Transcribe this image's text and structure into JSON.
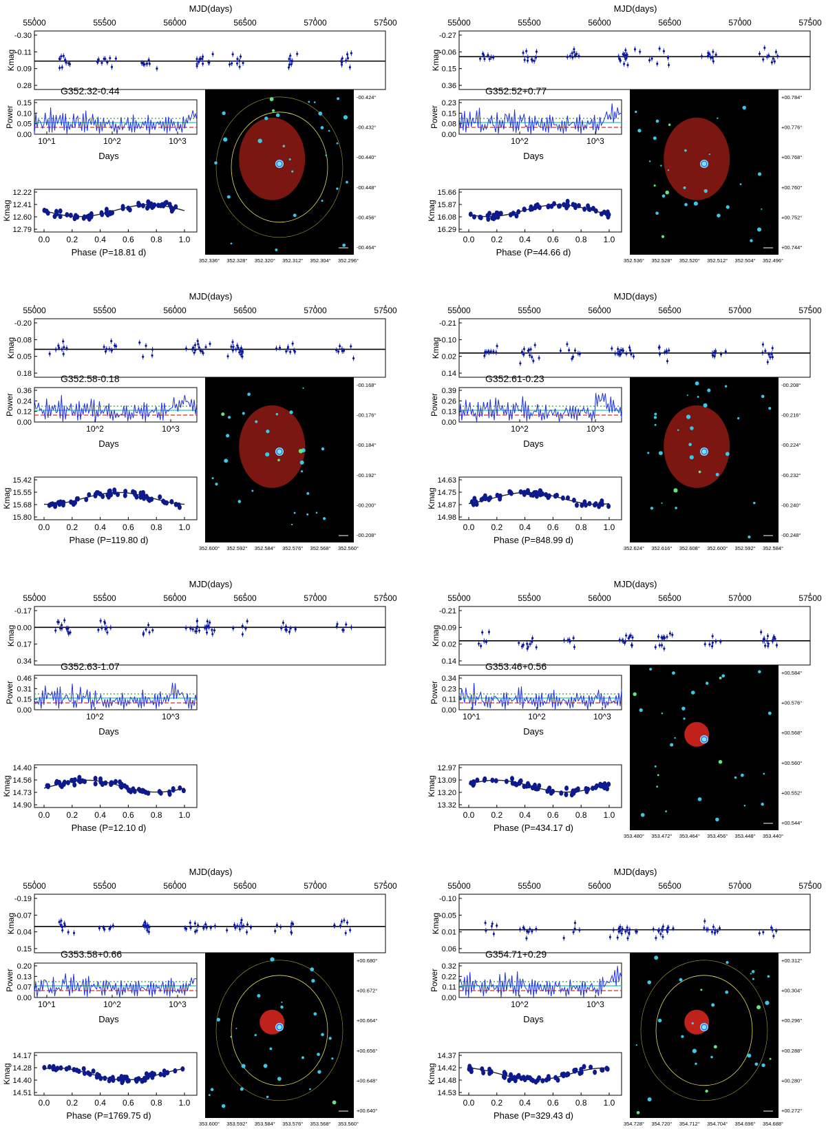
{
  "colors": {
    "points": "#0d1a8c",
    "errorbars": "#1e2fd6",
    "periodogram": "#1f32e0",
    "level_green": "#2a9d2a",
    "level_cyan": "#19c3c3",
    "level_red": "#e0281e",
    "fit": "#222222",
    "image_bg": "#000000",
    "nebula": "#e0281e",
    "contour": "#e8e060"
  },
  "chart_data": [
    {
      "type": "scatter",
      "name": "G352.32-0.44",
      "mjd_xlabel": "MJD(days)",
      "mjd_ticks": [
        "55000",
        "55500",
        "56000",
        "56500",
        "57000",
        "57500"
      ],
      "kmag_ylabel": "Kmag",
      "kmag_ticks": [
        "-0.30",
        "-0.11",
        "0.09",
        "0.28"
      ],
      "kmag_range": [
        -0.3,
        0.28
      ],
      "power_ylabel": "Power",
      "power_ticks": [
        "0.15",
        "0.10",
        "0.05",
        "0.00"
      ],
      "power_range": [
        0,
        0.15
      ],
      "days_xlabel": "Days",
      "days_ticks": [
        "10^1",
        "10^2",
        "10^3"
      ],
      "phase_ylabel": "Kmag",
      "phase_ticks": [
        "12.22",
        "12.41",
        "12.60",
        "12.79"
      ],
      "phase_range": [
        12.22,
        12.79
      ],
      "phase_xticks": [
        "0.0",
        "0.2",
        "0.4",
        "0.6",
        "0.8",
        "1.0"
      ],
      "phase_xlabel": "Phase (P=18.81 d)",
      "has_image": true,
      "image_lon_ticks": [
        "352.336°",
        "352.328°",
        "352.320°",
        "352.312°",
        "352.304°",
        "352.296°"
      ],
      "image_lat_ticks": [
        "-00.424°",
        "-00.432°",
        "-00.440°",
        "-00.448°",
        "-00.456°",
        "-00.464°"
      ]
    },
    {
      "type": "scatter",
      "name": "G352.52+0.77",
      "mjd_xlabel": "MJD(days)",
      "mjd_ticks": [
        "55000",
        "55500",
        "56000",
        "56500",
        "57000",
        "57500"
      ],
      "kmag_ylabel": "Kmag",
      "kmag_ticks": [
        "-0.27",
        "-0.06",
        "0.15",
        "0.36"
      ],
      "kmag_range": [
        -0.27,
        0.36
      ],
      "power_ylabel": "Power",
      "power_ticks": [
        "0.23",
        "0.15",
        "0.08",
        "0.00"
      ],
      "power_range": [
        0,
        0.23
      ],
      "days_xlabel": "Days",
      "days_ticks": [
        "10^2",
        "10^3"
      ],
      "phase_ylabel": "Kmag",
      "phase_ticks": [
        "15.66",
        "15.87",
        "16.08",
        "16.29"
      ],
      "phase_range": [
        15.66,
        16.29
      ],
      "phase_xticks": [
        "0.0",
        "0.2",
        "0.4",
        "0.6",
        "0.8",
        "1.0"
      ],
      "phase_xlabel": "Phase (P=44.66 d)",
      "has_image": true,
      "image_lon_ticks": [
        "352.536°",
        "352.528°",
        "352.520°",
        "352.512°",
        "352.504°",
        "352.496°"
      ],
      "image_lat_ticks": [
        "+00.784°",
        "+00.776°",
        "+00.768°",
        "+00.760°",
        "+00.752°",
        "+00.744°"
      ]
    },
    {
      "type": "scatter",
      "name": "G352.58-0.18",
      "mjd_xlabel": "MJD(days)",
      "mjd_ticks": [
        "55000",
        "55500",
        "56000",
        "56500",
        "57000",
        "57500"
      ],
      "kmag_ylabel": "Kmag",
      "kmag_ticks": [
        "-0.20",
        "-0.08",
        "0.05",
        "0.18"
      ],
      "kmag_range": [
        -0.2,
        0.18
      ],
      "power_ylabel": "Power",
      "power_ticks": [
        "0.36",
        "0.24",
        "0.12",
        "0.00"
      ],
      "power_range": [
        0,
        0.36
      ],
      "days_xlabel": "Days",
      "days_ticks": [
        "10^2",
        "10^3"
      ],
      "phase_ylabel": "Kmag",
      "phase_ticks": [
        "15.42",
        "15.55",
        "15.68",
        "15.80"
      ],
      "phase_range": [
        15.42,
        15.8
      ],
      "phase_xticks": [
        "0.0",
        "0.2",
        "0.4",
        "0.6",
        "0.8",
        "1.0"
      ],
      "phase_xlabel": "Phase (P=119.80 d)",
      "has_image": true,
      "image_lon_ticks": [
        "352.600°",
        "352.592°",
        "352.584°",
        "352.576°",
        "352.568°",
        "352.560°"
      ],
      "image_lat_ticks": [
        "-00.168°",
        "-00.176°",
        "-00.184°",
        "-00.192°",
        "-00.200°",
        "-00.208°"
      ]
    },
    {
      "type": "scatter",
      "name": "G352.61-0.23",
      "mjd_xlabel": "MJD(days)",
      "mjd_ticks": [
        "55000",
        "55500",
        "56000",
        "56500",
        "57000",
        "57500"
      ],
      "kmag_ylabel": "Kmag",
      "kmag_ticks": [
        "-0.21",
        "-0.10",
        "0.02",
        "0.14"
      ],
      "kmag_range": [
        -0.21,
        0.14
      ],
      "power_ylabel": "Power",
      "power_ticks": [
        "0.39",
        "0.26",
        "0.13",
        "0.00"
      ],
      "power_range": [
        0,
        0.39
      ],
      "days_xlabel": "Days",
      "days_ticks": [
        "10^2",
        "10^3"
      ],
      "phase_ylabel": "Kmag",
      "phase_ticks": [
        "14.63",
        "14.75",
        "14.87",
        "14.98"
      ],
      "phase_range": [
        14.63,
        14.98
      ],
      "phase_xticks": [
        "0.0",
        "0.2",
        "0.4",
        "0.6",
        "0.8",
        "1.0"
      ],
      "phase_xlabel": "Phase (P=848.99 d)",
      "has_image": true,
      "image_lon_ticks": [
        "352.624°",
        "352.616°",
        "352.608°",
        "352.600°",
        "352.592°",
        "352.584°"
      ],
      "image_lat_ticks": [
        "-00.208°",
        "-00.216°",
        "-00.224°",
        "-00.232°",
        "-00.240°",
        "-00.248°"
      ]
    },
    {
      "type": "scatter",
      "name": "G352.63-1.07",
      "mjd_xlabel": "MJD(days)",
      "mjd_ticks": [
        "55000",
        "55500",
        "56000",
        "56500",
        "57000",
        "57500"
      ],
      "kmag_ylabel": "Kmag",
      "kmag_ticks": [
        "-0.17",
        "0.00",
        "0.17",
        "0.34"
      ],
      "kmag_range": [
        -0.17,
        0.34
      ],
      "power_ylabel": "Power",
      "power_ticks": [
        "0.46",
        "0.31",
        "0.15",
        "0.00"
      ],
      "power_range": [
        0,
        0.46
      ],
      "days_xlabel": "Days",
      "days_ticks": [
        "10^2",
        "10^3"
      ],
      "phase_ylabel": "Kmag",
      "phase_ticks": [
        "14.40",
        "14.56",
        "14.73",
        "14.90"
      ],
      "phase_range": [
        14.4,
        14.9
      ],
      "phase_xticks": [
        "0.0",
        "0.2",
        "0.4",
        "0.6",
        "0.8",
        "1.0"
      ],
      "phase_xlabel": "Phase (P=12.10 d)",
      "has_image": false
    },
    {
      "type": "scatter",
      "name": "G353.46+0.56",
      "mjd_xlabel": "MJD(days)",
      "mjd_ticks": [
        "55000",
        "55500",
        "56000",
        "56500",
        "57000",
        "57500"
      ],
      "kmag_ylabel": "Kmag",
      "kmag_ticks": [
        "-0.21",
        "-0.09",
        "0.02",
        "0.14"
      ],
      "kmag_range": [
        -0.21,
        0.14
      ],
      "power_ylabel": "Power",
      "power_ticks": [
        "0.34",
        "0.23",
        "0.11",
        "0.00"
      ],
      "power_range": [
        0,
        0.34
      ],
      "days_xlabel": "Days",
      "days_ticks": [
        "10^1",
        "10^2",
        "10^3"
      ],
      "phase_ylabel": "Kmag",
      "phase_ticks": [
        "12.97",
        "13.09",
        "13.20",
        "13.32"
      ],
      "phase_range": [
        12.97,
        13.32
      ],
      "phase_xticks": [
        "0.0",
        "0.2",
        "0.4",
        "0.6",
        "0.8",
        "1.0"
      ],
      "phase_xlabel": "Phase (P=434.17 d)",
      "has_image": true,
      "image_lon_ticks": [
        "353.480°",
        "353.472°",
        "353.464°",
        "353.456°",
        "353.448°",
        "353.440°"
      ],
      "image_lat_ticks": [
        "+00.584°",
        "+00.576°",
        "+00.568°",
        "+00.560°",
        "+00.552°",
        "+00.544°"
      ]
    },
    {
      "type": "scatter",
      "name": "G353.58+0.66",
      "mjd_xlabel": "MJD(days)",
      "mjd_ticks": [
        "55000",
        "55500",
        "56000",
        "56500",
        "57000",
        "57500"
      ],
      "kmag_ylabel": "Kmag",
      "kmag_ticks": [
        "-0.19",
        "-0.07",
        "0.04",
        "0.15"
      ],
      "kmag_range": [
        -0.19,
        0.15
      ],
      "power_ylabel": "Power",
      "power_ticks": [
        "0.20",
        "0.13",
        "0.07",
        "0.00"
      ],
      "power_range": [
        0,
        0.2
      ],
      "days_xlabel": "Days",
      "days_ticks": [
        "10^1",
        "10^2",
        "10^3"
      ],
      "phase_ylabel": "Kmag",
      "phase_ticks": [
        "14.17",
        "14.28",
        "14.40",
        "14.51"
      ],
      "phase_range": [
        14.17,
        14.51
      ],
      "phase_xticks": [
        "0.0",
        "0.2",
        "0.4",
        "0.6",
        "0.8",
        "1.0"
      ],
      "phase_xlabel": "Phase (P=1769.75 d)",
      "has_image": true,
      "image_lon_ticks": [
        "353.600°",
        "353.592°",
        "353.584°",
        "353.576°",
        "353.568°",
        "353.560°"
      ],
      "image_lat_ticks": [
        "+00.680°",
        "+00.672°",
        "+00.664°",
        "+00.656°",
        "+00.648°",
        "+00.640°"
      ]
    },
    {
      "type": "scatter",
      "name": "G354.71+0.29",
      "mjd_xlabel": "MJD(days)",
      "mjd_ticks": [
        "55000",
        "55500",
        "56000",
        "56500",
        "57000",
        "57500"
      ],
      "kmag_ylabel": "Kmag",
      "kmag_ticks": [
        "-0.10",
        "-0.05",
        "0.01",
        "0.06"
      ],
      "kmag_range": [
        -0.1,
        0.06
      ],
      "power_ylabel": "Power",
      "power_ticks": [
        "0.32",
        "0.22",
        "0.11",
        "0.00"
      ],
      "power_range": [
        0,
        0.32
      ],
      "days_xlabel": "Days",
      "days_ticks": [
        "10^2",
        "10^3"
      ],
      "phase_ylabel": "Kmag",
      "phase_ticks": [
        "14.37",
        "14.42",
        "14.48",
        "14.53"
      ],
      "phase_range": [
        14.37,
        14.53
      ],
      "phase_xticks": [
        "0.0",
        "0.2",
        "0.4",
        "0.6",
        "0.8",
        "1.0"
      ],
      "phase_xlabel": "Phase (P=329.43 d)",
      "has_image": true,
      "image_lon_ticks": [
        "354.728°",
        "354.720°",
        "354.712°",
        "354.704°",
        "354.696°",
        "354.688°"
      ],
      "image_lat_ticks": [
        "+00.312°",
        "+00.304°",
        "+00.296°",
        "+00.288°",
        "+00.280°",
        "+00.272°"
      ]
    }
  ]
}
